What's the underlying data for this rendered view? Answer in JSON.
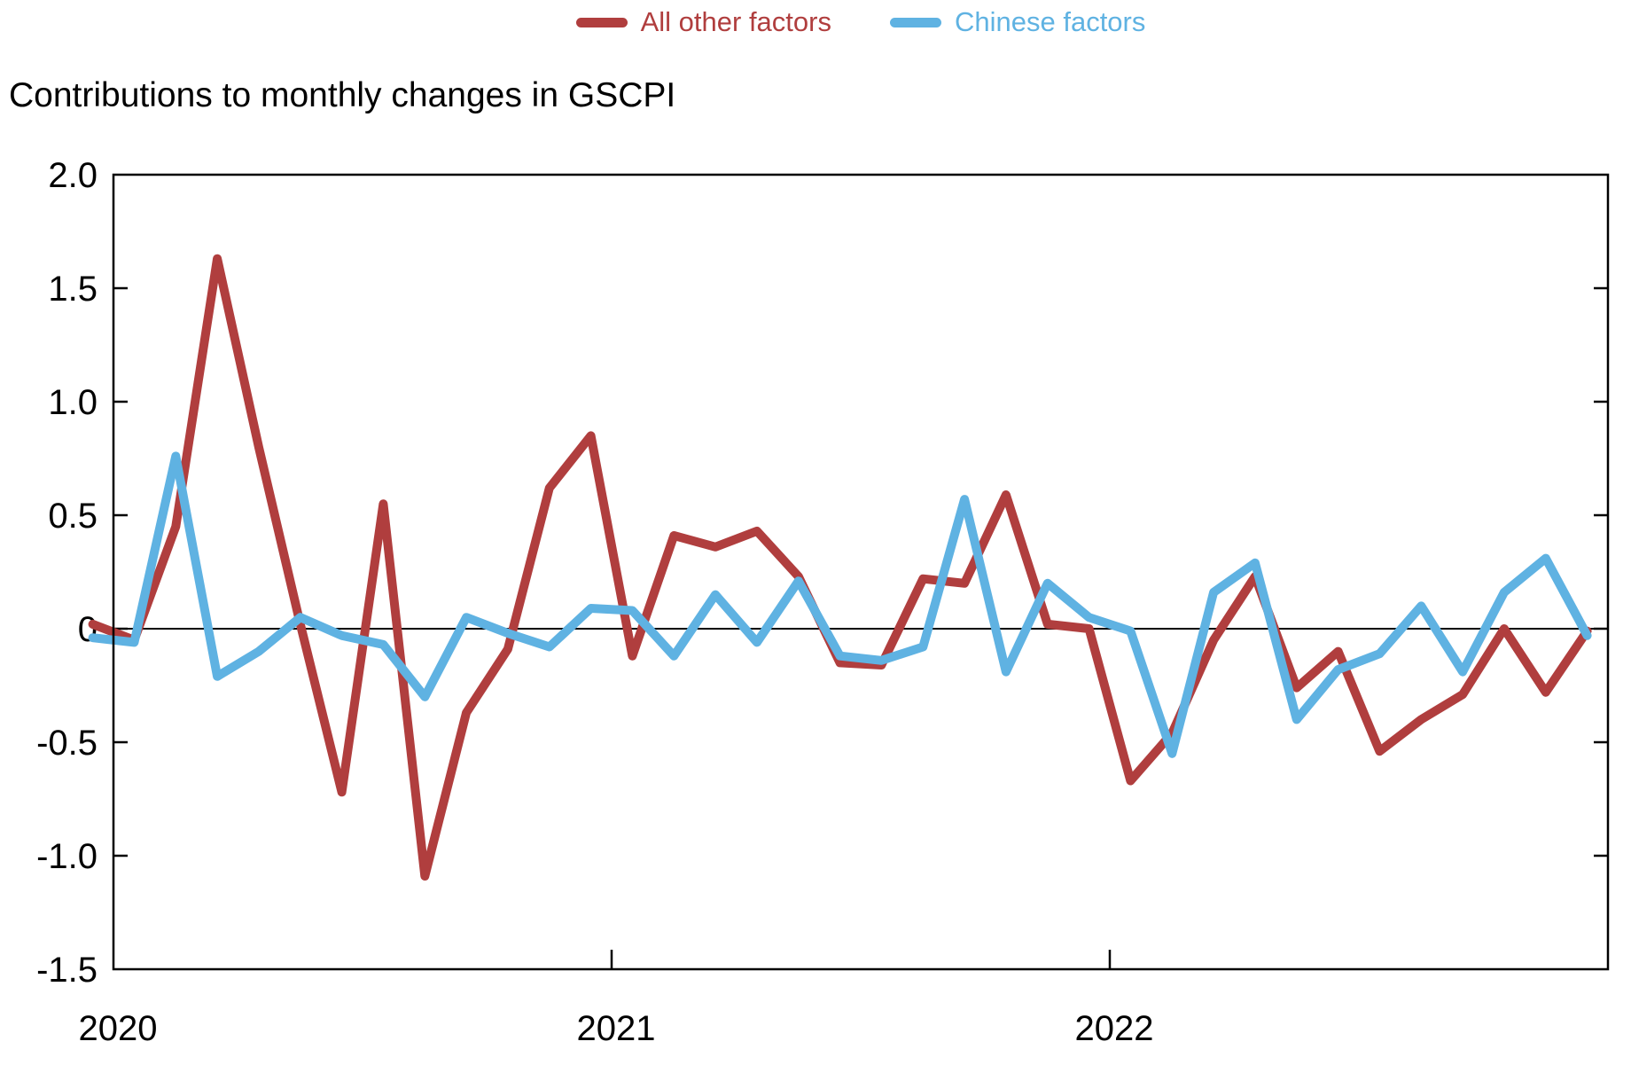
{
  "title": "Contributions to monthly changes in GSCPI",
  "legend": {
    "items": [
      {
        "label": "All other factors",
        "color": "#B03E3E"
      },
      {
        "label": "Chinese factors",
        "color": "#5FB2E2"
      }
    ]
  },
  "axes": {
    "ytick_labels": [
      "2.0",
      "1.5",
      "1.0",
      "0.5",
      "0",
      "-0.5",
      "-1.0",
      "-1.5"
    ],
    "xtick_labels": [
      "2020",
      "2021",
      "2022"
    ]
  },
  "chart_data": {
    "type": "line",
    "title": "Contributions to monthly changes in GSCPI",
    "xlabel": "",
    "ylabel": "",
    "ylim": [
      -1.5,
      2.0
    ],
    "yticks": [
      2.0,
      1.5,
      1.0,
      0.5,
      0,
      -0.5,
      -1.0,
      -1.5
    ],
    "ytick_labels": [
      "2.0",
      "1.5",
      "1.0",
      "0.5",
      "0",
      "-0.5",
      "-1.0",
      "-1.5"
    ],
    "xtick_labels": [
      "2020",
      "2021",
      "2022"
    ],
    "grid": false,
    "zero_line": true,
    "legend_position": "top-center",
    "x": [
      "2019-12",
      "2020-01",
      "2020-02",
      "2020-03",
      "2020-04",
      "2020-05",
      "2020-06",
      "2020-07",
      "2020-08",
      "2020-09",
      "2020-10",
      "2020-11",
      "2020-12",
      "2021-01",
      "2021-02",
      "2021-03",
      "2021-04",
      "2021-05",
      "2021-06",
      "2021-07",
      "2021-08",
      "2021-09",
      "2021-10",
      "2021-11",
      "2021-12",
      "2022-01",
      "2022-02",
      "2022-03",
      "2022-04",
      "2022-05",
      "2022-06",
      "2022-07",
      "2022-08",
      "2022-09",
      "2022-10",
      "2022-11",
      "2022-12"
    ],
    "series": [
      {
        "name": "All other factors",
        "color": "#B03E3E",
        "values": [
          0.02,
          -0.05,
          0.45,
          1.63,
          0.8,
          0.02,
          -0.72,
          0.55,
          -1.09,
          -0.37,
          -0.09,
          0.62,
          0.85,
          -0.12,
          0.41,
          0.36,
          0.43,
          0.23,
          -0.15,
          -0.16,
          0.22,
          0.2,
          0.59,
          0.02,
          0.0,
          -0.67,
          -0.46,
          -0.05,
          0.23,
          -0.26,
          -0.1,
          -0.54,
          -0.4,
          -0.29,
          0.0,
          -0.28,
          -0.01
        ]
      },
      {
        "name": "Chinese factors",
        "color": "#5FB2E2",
        "values": [
          -0.04,
          -0.06,
          0.76,
          -0.21,
          -0.1,
          0.05,
          -0.03,
          -0.07,
          -0.3,
          0.05,
          -0.02,
          -0.08,
          0.09,
          0.08,
          -0.12,
          0.15,
          -0.06,
          0.21,
          -0.12,
          -0.14,
          -0.08,
          0.57,
          -0.19,
          0.2,
          0.05,
          -0.01,
          -0.55,
          0.16,
          0.29,
          -0.4,
          -0.18,
          -0.11,
          0.1,
          -0.19,
          0.16,
          0.31,
          -0.03
        ]
      }
    ]
  }
}
